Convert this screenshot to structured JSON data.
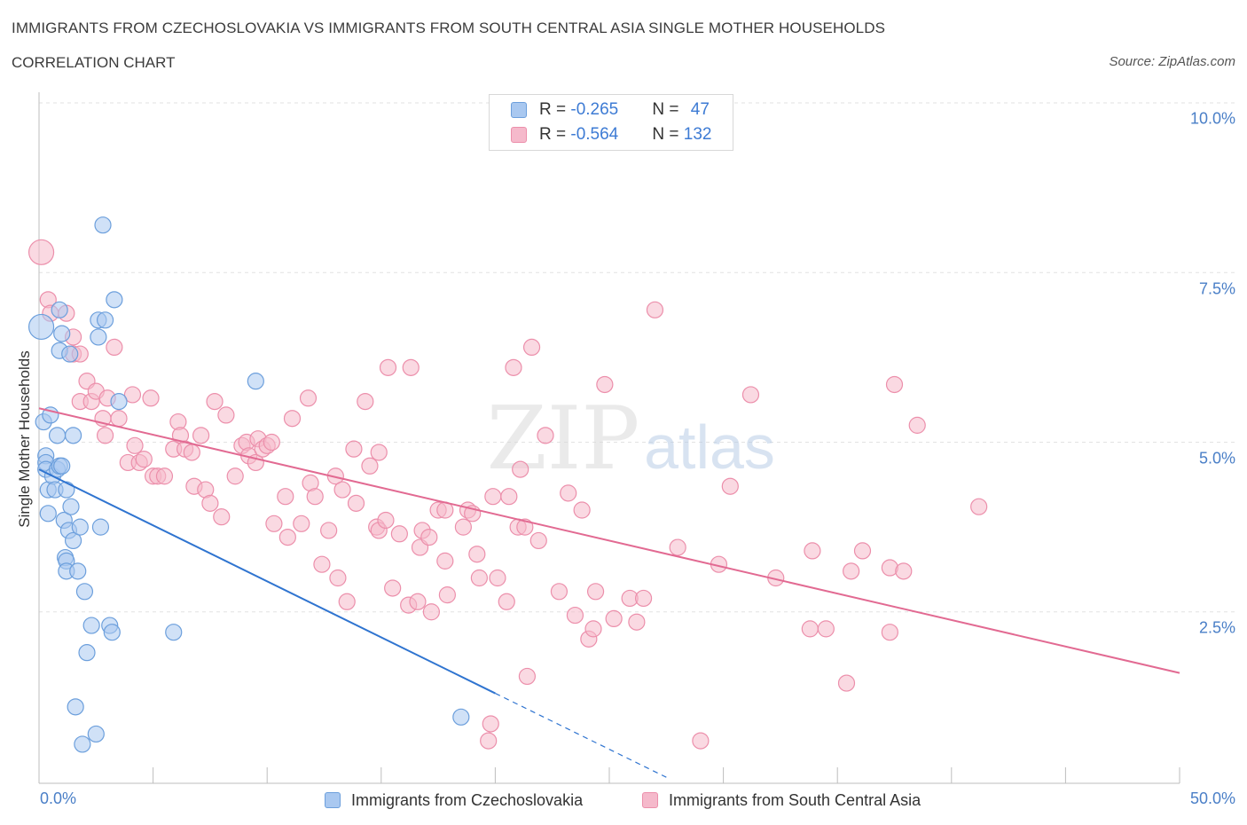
{
  "header": {
    "title": "IMMIGRANTS FROM CZECHOSLOVAKIA VS IMMIGRANTS FROM SOUTH CENTRAL ASIA SINGLE MOTHER HOUSEHOLDS",
    "subtitle": "CORRELATION CHART",
    "source": "Source: ZipAtlas.com"
  },
  "colors": {
    "blue_fill": "#a9c8f0",
    "blue_stroke": "#6c9fdc",
    "blue_line": "#2f74d0",
    "pink_fill": "#f5b9cb",
    "pink_stroke": "#ec8fab",
    "pink_line": "#e26a92",
    "tick_text": "#4a7fc7"
  },
  "legend": {
    "rows": [
      {
        "r_label": "R = ",
        "r_value": "-0.265",
        "n_label": "N = ",
        "n_value": "47"
      },
      {
        "r_label": "R = ",
        "r_value": "-0.564",
        "n_label": "N = ",
        "n_value": "132"
      }
    ]
  },
  "bottom_legend": {
    "series1": "Immigrants from Czechoslovakia",
    "series2": "Immigrants from South Central Asia"
  },
  "axes": {
    "ylabel": "Single Mother Households",
    "y_ticks": [
      "10.0%",
      "7.5%",
      "5.0%",
      "2.5%"
    ],
    "x_tick_left": "0.0%",
    "x_tick_right": "50.0%"
  },
  "watermark": {
    "zip": "ZIP",
    "atlas": "atlas"
  },
  "chart_data": {
    "type": "scatter",
    "xlabel": "",
    "ylabel": "Single Mother Households",
    "xlim": [
      0,
      50
    ],
    "ylim": [
      0,
      10.0
    ],
    "grid": true,
    "legend_position": "top-center",
    "series": [
      {
        "name": "Immigrants from Czechoslovakia",
        "r": -0.265,
        "n": 47,
        "trend": {
          "x0": 0.0,
          "y0": 4.6,
          "x1": 20.0,
          "y1": 1.3,
          "dashed_to_x": 27.5
        },
        "points": [
          [
            0.1,
            6.7
          ],
          [
            0.2,
            5.3
          ],
          [
            0.3,
            4.8
          ],
          [
            0.3,
            4.7
          ],
          [
            0.3,
            4.6
          ],
          [
            0.4,
            4.3
          ],
          [
            0.5,
            5.4
          ],
          [
            0.4,
            3.95
          ],
          [
            0.6,
            4.5
          ],
          [
            0.7,
            4.3
          ],
          [
            0.8,
            4.6
          ],
          [
            0.8,
            5.1
          ],
          [
            0.9,
            4.65
          ],
          [
            0.9,
            6.35
          ],
          [
            1.0,
            4.65
          ],
          [
            0.9,
            6.95
          ],
          [
            1.0,
            6.6
          ],
          [
            1.1,
            3.85
          ],
          [
            1.15,
            3.3
          ],
          [
            1.2,
            3.25
          ],
          [
            1.2,
            3.1
          ],
          [
            1.2,
            4.3
          ],
          [
            1.3,
            3.7
          ],
          [
            1.35,
            6.3
          ],
          [
            1.4,
            4.05
          ],
          [
            1.5,
            3.55
          ],
          [
            1.5,
            5.1
          ],
          [
            1.6,
            1.1
          ],
          [
            1.7,
            3.1
          ],
          [
            1.8,
            3.75
          ],
          [
            1.9,
            0.55
          ],
          [
            2.0,
            2.8
          ],
          [
            2.1,
            1.9
          ],
          [
            2.3,
            2.3
          ],
          [
            2.5,
            0.7
          ],
          [
            2.6,
            6.8
          ],
          [
            2.6,
            6.55
          ],
          [
            2.7,
            3.75
          ],
          [
            2.8,
            8.2
          ],
          [
            2.9,
            6.8
          ],
          [
            3.1,
            2.3
          ],
          [
            3.2,
            2.2
          ],
          [
            3.3,
            7.1
          ],
          [
            3.5,
            5.6
          ],
          [
            5.9,
            2.2
          ],
          [
            9.5,
            5.9
          ],
          [
            18.5,
            0.95
          ]
        ]
      },
      {
        "name": "Immigrants from South Central Asia",
        "r": -0.564,
        "n": 132,
        "trend": {
          "x0": 0.0,
          "y0": 5.5,
          "x1": 50.0,
          "y1": 1.6
        },
        "points": [
          [
            0.1,
            7.8
          ],
          [
            0.4,
            7.1
          ],
          [
            0.5,
            6.9
          ],
          [
            1.2,
            6.9
          ],
          [
            1.5,
            6.3
          ],
          [
            1.5,
            6.55
          ],
          [
            1.8,
            6.3
          ],
          [
            1.8,
            5.6
          ],
          [
            2.1,
            5.9
          ],
          [
            2.3,
            5.6
          ],
          [
            2.5,
            5.75
          ],
          [
            2.8,
            5.35
          ],
          [
            2.9,
            5.1
          ],
          [
            3.0,
            5.65
          ],
          [
            3.3,
            6.4
          ],
          [
            3.5,
            5.35
          ],
          [
            3.9,
            4.7
          ],
          [
            4.1,
            5.7
          ],
          [
            4.2,
            4.95
          ],
          [
            4.4,
            4.7
          ],
          [
            4.6,
            4.75
          ],
          [
            4.9,
            5.65
          ],
          [
            5.0,
            4.5
          ],
          [
            5.2,
            4.5
          ],
          [
            5.5,
            4.5
          ],
          [
            5.9,
            4.9
          ],
          [
            6.1,
            5.3
          ],
          [
            6.2,
            5.1
          ],
          [
            6.4,
            4.9
          ],
          [
            6.7,
            4.85
          ],
          [
            6.8,
            4.35
          ],
          [
            7.1,
            5.1
          ],
          [
            7.3,
            4.3
          ],
          [
            7.5,
            4.1
          ],
          [
            7.7,
            5.6
          ],
          [
            8.0,
            3.9
          ],
          [
            8.2,
            5.4
          ],
          [
            8.6,
            4.5
          ],
          [
            8.9,
            4.95
          ],
          [
            9.1,
            5.0
          ],
          [
            9.2,
            4.8
          ],
          [
            9.5,
            4.7
          ],
          [
            9.6,
            5.05
          ],
          [
            9.8,
            4.9
          ],
          [
            10.0,
            4.95
          ],
          [
            10.2,
            5.0
          ],
          [
            10.3,
            3.8
          ],
          [
            10.8,
            4.2
          ],
          [
            10.9,
            3.6
          ],
          [
            11.1,
            5.35
          ],
          [
            11.5,
            3.8
          ],
          [
            11.8,
            5.65
          ],
          [
            11.9,
            4.4
          ],
          [
            12.1,
            4.2
          ],
          [
            12.4,
            3.2
          ],
          [
            12.7,
            3.7
          ],
          [
            13.0,
            4.5
          ],
          [
            13.1,
            3.0
          ],
          [
            13.3,
            4.3
          ],
          [
            13.5,
            2.65
          ],
          [
            13.8,
            4.9
          ],
          [
            13.9,
            4.1
          ],
          [
            14.3,
            5.6
          ],
          [
            14.5,
            4.65
          ],
          [
            14.8,
            3.75
          ],
          [
            14.9,
            4.85
          ],
          [
            14.9,
            3.7
          ],
          [
            15.2,
            3.85
          ],
          [
            15.3,
            6.1
          ],
          [
            15.5,
            2.85
          ],
          [
            15.8,
            3.65
          ],
          [
            16.2,
            2.6
          ],
          [
            16.3,
            6.1
          ],
          [
            16.6,
            2.65
          ],
          [
            16.7,
            3.45
          ],
          [
            16.8,
            3.7
          ],
          [
            17.1,
            3.6
          ],
          [
            17.2,
            2.5
          ],
          [
            17.5,
            4.0
          ],
          [
            17.8,
            4.0
          ],
          [
            17.8,
            3.25
          ],
          [
            17.9,
            2.75
          ],
          [
            18.6,
            3.75
          ],
          [
            18.8,
            4.0
          ],
          [
            19.0,
            3.95
          ],
          [
            19.2,
            3.35
          ],
          [
            19.3,
            3.0
          ],
          [
            19.7,
            0.6
          ],
          [
            19.8,
            0.85
          ],
          [
            19.9,
            4.2
          ],
          [
            20.1,
            3.0
          ],
          [
            20.5,
            2.65
          ],
          [
            20.6,
            4.2
          ],
          [
            20.8,
            6.1
          ],
          [
            21.0,
            3.75
          ],
          [
            21.1,
            4.6
          ],
          [
            21.3,
            3.75
          ],
          [
            21.4,
            1.55
          ],
          [
            21.6,
            6.4
          ],
          [
            21.9,
            3.55
          ],
          [
            22.2,
            5.1
          ],
          [
            22.8,
            2.8
          ],
          [
            23.2,
            4.25
          ],
          [
            23.5,
            2.45
          ],
          [
            23.8,
            4.0
          ],
          [
            24.1,
            2.1
          ],
          [
            24.3,
            2.25
          ],
          [
            24.4,
            2.8
          ],
          [
            24.8,
            5.85
          ],
          [
            25.2,
            2.4
          ],
          [
            25.9,
            2.7
          ],
          [
            26.2,
            2.35
          ],
          [
            26.5,
            2.7
          ],
          [
            27.0,
            6.95
          ],
          [
            28.0,
            3.45
          ],
          [
            29.0,
            0.6
          ],
          [
            29.8,
            3.2
          ],
          [
            30.3,
            4.35
          ],
          [
            31.2,
            5.7
          ],
          [
            32.3,
            3.0
          ],
          [
            33.8,
            2.25
          ],
          [
            33.9,
            3.4
          ],
          [
            34.5,
            2.25
          ],
          [
            35.4,
            1.45
          ],
          [
            35.6,
            3.1
          ],
          [
            36.1,
            3.4
          ],
          [
            37.3,
            3.15
          ],
          [
            37.3,
            2.2
          ],
          [
            37.5,
            5.85
          ],
          [
            37.9,
            3.1
          ],
          [
            38.5,
            5.25
          ],
          [
            41.2,
            4.05
          ]
        ]
      }
    ]
  }
}
